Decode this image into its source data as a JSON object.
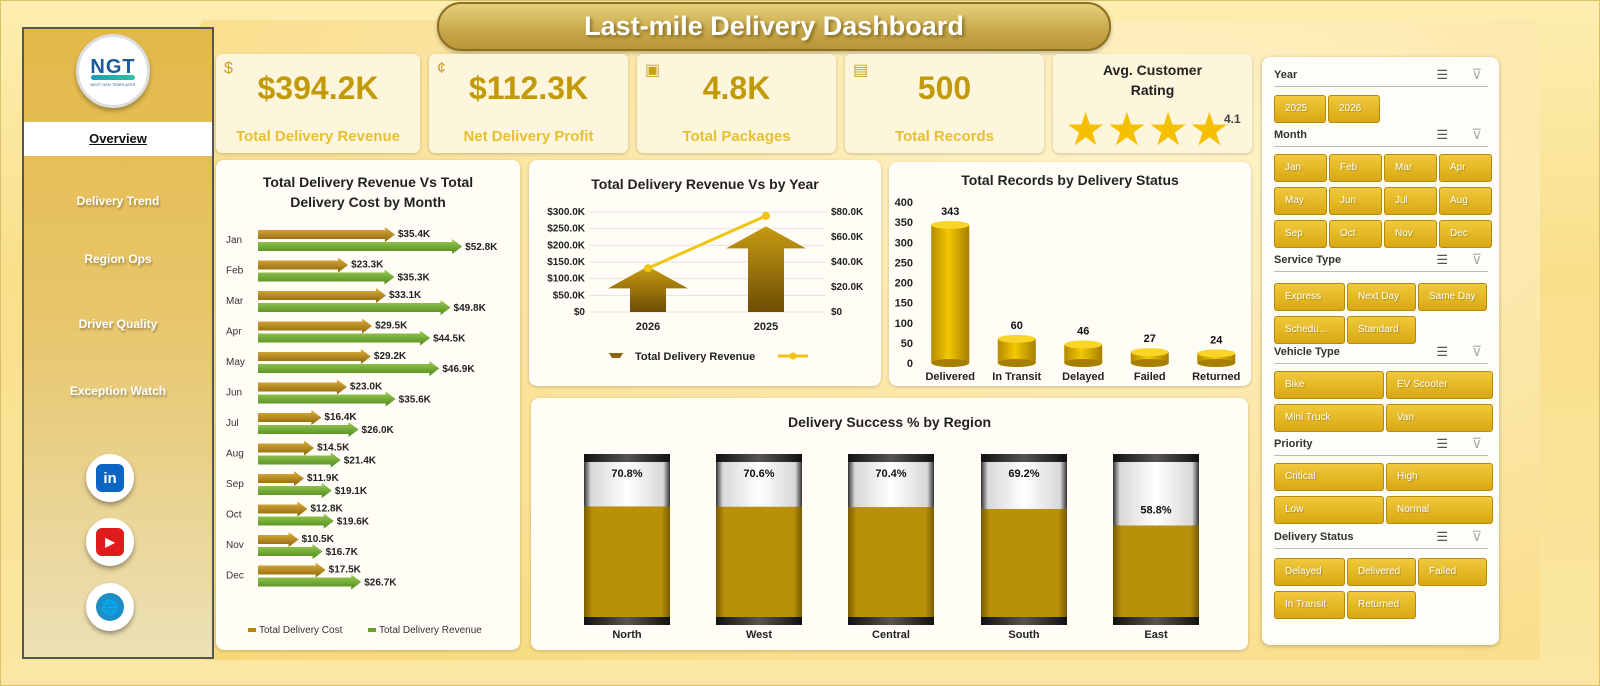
{
  "title": "Last-mile Delivery Dashboard",
  "logo": {
    "text": "NGT",
    "subtitle": "NEXT GEN TEMPLATES"
  },
  "sidebar": {
    "items": [
      {
        "label": "Overview"
      },
      {
        "label": "Delivery Trend"
      },
      {
        "label": "Region Ops"
      },
      {
        "label": "Driver Quality"
      },
      {
        "label": "Exception Watch"
      }
    ],
    "social": [
      {
        "name": "linkedin",
        "label": "in",
        "color": "#0a66c2"
      },
      {
        "name": "youtube",
        "label": "▶",
        "color": "#e01b1b"
      },
      {
        "name": "website",
        "label": "🌐",
        "color": "#1b8fc6"
      }
    ]
  },
  "kpis": {
    "revenue": {
      "value": "$394.2K",
      "label": "Total Delivery Revenue"
    },
    "profit": {
      "value": "$112.3K",
      "label": "Net Delivery Profit"
    },
    "packages": {
      "value": "4.8K",
      "label": "Total Packages"
    },
    "records": {
      "value": "500",
      "label": "Total Records"
    },
    "rating": {
      "title": "Avg. Customer Rating",
      "value": "4.1",
      "stars": 4.1
    }
  },
  "charts": {
    "rev_cost_month": {
      "title": "Total Delivery Revenue Vs Total Delivery Cost by Month",
      "legend": [
        "Total Delivery Cost",
        "Total Delivery Revenue"
      ]
    },
    "rev_year": {
      "title": "Total Delivery Revenue Vs  by Year",
      "legend": [
        "Total Delivery Revenue",
        ""
      ]
    },
    "records_status": {
      "title": "Total Records by Delivery Status"
    },
    "success_region": {
      "title": "Delivery Success % by Region"
    }
  },
  "chart_data": [
    {
      "type": "bar",
      "orientation": "horizontal",
      "title": "Total Delivery Revenue Vs Total Delivery Cost by Month",
      "categories": [
        "Jan",
        "Feb",
        "Mar",
        "Apr",
        "May",
        "Jun",
        "Jul",
        "Aug",
        "Sep",
        "Oct",
        "Nov",
        "Dec"
      ],
      "series": [
        {
          "name": "Total Delivery Cost",
          "values": [
            35.4,
            23.3,
            33.1,
            29.5,
            29.2,
            23.0,
            16.4,
            14.5,
            11.9,
            12.8,
            10.5,
            17.5
          ],
          "labels": [
            "$35.4K",
            "$23.3K",
            "$33.1K",
            "$29.5K",
            "$29.2K",
            "$23.0K",
            "$16.4K",
            "$14.5K",
            "$11.9K",
            "$12.8K",
            "$10.5K",
            "$17.5K"
          ],
          "color": "#b8860b"
        },
        {
          "name": "Total Delivery Revenue",
          "values": [
            52.8,
            35.3,
            49.8,
            44.5,
            46.9,
            35.6,
            26.0,
            21.4,
            19.1,
            19.6,
            16.7,
            26.7
          ],
          "labels": [
            "$52.8K",
            "$35.3K",
            "$49.8K",
            "$44.5K",
            "$46.9K",
            "$35.6K",
            "$26.0K",
            "$21.4K",
            "$19.1K",
            "$19.6K",
            "$16.7K",
            "$26.7K"
          ],
          "color": "#6aa32a"
        }
      ],
      "legend": "bottom"
    },
    {
      "type": "bar",
      "title": "Total Delivery Revenue Vs  by Year",
      "categories": [
        "2026",
        "2025"
      ],
      "series": [
        {
          "name": "Total Delivery Revenue",
          "values": [
            137,
            257
          ],
          "axis": "left",
          "color": "#a07808"
        },
        {
          "name": "",
          "values": [
            35,
            77
          ],
          "axis": "right",
          "type": "line",
          "color": "#f1c40f"
        }
      ],
      "y_left_ticks": [
        "$0",
        "$50.0K",
        "$100.0K",
        "$150.0K",
        "$200.0K",
        "$250.0K",
        "$300.0K"
      ],
      "y_right_ticks": [
        "$0",
        "$20.0K",
        "$40.0K",
        "$60.0K",
        "$80.0K"
      ],
      "ylim_left": [
        0,
        300
      ],
      "ylim_right": [
        0,
        80
      ],
      "legend": "bottom"
    },
    {
      "type": "bar",
      "title": "Total Records by Delivery Status",
      "categories": [
        "Delivered",
        "In Transit",
        "Delayed",
        "Failed",
        "Returned"
      ],
      "values": [
        343,
        60,
        46,
        27,
        24
      ],
      "y_ticks": [
        "0",
        "50",
        "100",
        "150",
        "200",
        "250",
        "300",
        "350",
        "400"
      ],
      "ylim": [
        0,
        400
      ],
      "color": "#e3b300"
    },
    {
      "type": "bar",
      "title": "Delivery Success % by Region",
      "categories": [
        "North",
        "West",
        "Central",
        "South",
        "East"
      ],
      "values": [
        70.8,
        70.6,
        70.4,
        69.2,
        58.8
      ],
      "labels": [
        "70.8%",
        "70.6%",
        "70.4%",
        "69.2%",
        "58.8%"
      ],
      "ylim": [
        0,
        100
      ],
      "color": "#b8900a"
    }
  ],
  "slicers": [
    {
      "title": "Year",
      "items": [
        "2025",
        "2026"
      ]
    },
    {
      "title": "Month",
      "items": [
        "Jan",
        "Feb",
        "Mar",
        "Apr",
        "May",
        "Jun",
        "Jul",
        "Aug",
        "Sep",
        "Oct",
        "Nov",
        "Dec"
      ]
    },
    {
      "title": "Service Type",
      "items": [
        "Express",
        "Next Day",
        "Same Day",
        "Schedu...",
        "Standard"
      ]
    },
    {
      "title": "Vehicle Type",
      "items": [
        "Bike",
        "EV Scooter",
        "Mini Truck",
        "Van"
      ]
    },
    {
      "title": "Priority",
      "items": [
        "Critical",
        "High",
        "Low",
        "Normal"
      ]
    },
    {
      "title": "Delivery Status",
      "items": [
        "Delayed",
        "Delivered",
        "Failed",
        "In Transit",
        "Returned"
      ]
    }
  ]
}
